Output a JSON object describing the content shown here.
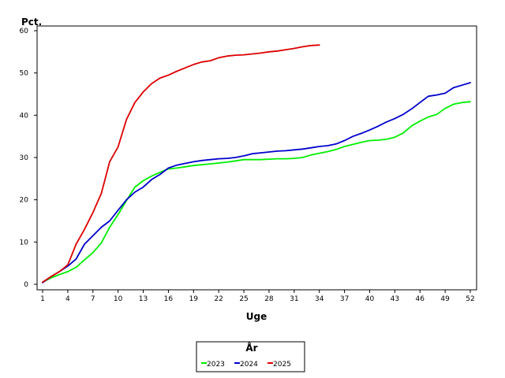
{
  "chart_data": {
    "type": "line",
    "title": "",
    "xlabel": "Uge",
    "ylabel": "Pct.",
    "xlim": [
      1,
      52
    ],
    "ylim": [
      0,
      60
    ],
    "grid": false,
    "x_ticks": [
      1,
      4,
      7,
      10,
      13,
      16,
      19,
      22,
      25,
      28,
      31,
      34,
      37,
      40,
      43,
      46,
      49,
      52
    ],
    "y_ticks": [
      0,
      10,
      20,
      30,
      40,
      50,
      60
    ],
    "legend": {
      "title": "År",
      "placement": "bottom-center"
    },
    "series": [
      {
        "name": "2023",
        "color": "#00ee00",
        "x": [
          1,
          2,
          3,
          4,
          5,
          6,
          7,
          8,
          9,
          10,
          11,
          12,
          13,
          14,
          15,
          16,
          17,
          18,
          19,
          20,
          21,
          22,
          23,
          24,
          25,
          26,
          27,
          28,
          29,
          30,
          31,
          32,
          33,
          34,
          35,
          36,
          37,
          38,
          39,
          40,
          41,
          42,
          43,
          44,
          45,
          46,
          47,
          48,
          49,
          50,
          51,
          52
        ],
        "values": [
          0.5,
          1.5,
          2.3,
          3,
          4,
          5.8,
          7.5,
          9.8,
          13.5,
          16.5,
          19.8,
          23,
          24.5,
          25.6,
          26.5,
          27.3,
          27.5,
          27.8,
          28.1,
          28.3,
          28.5,
          28.7,
          28.9,
          29.2,
          29.5,
          29.5,
          29.5,
          29.6,
          29.7,
          29.7,
          29.8,
          30,
          30.6,
          31,
          31.4,
          31.9,
          32.6,
          33.1,
          33.6,
          34,
          34.1,
          34.3,
          34.8,
          35.8,
          37.5,
          38.6,
          39.6,
          40.2,
          41.6,
          42.6,
          43,
          43.2
        ]
      },
      {
        "name": "2024",
        "color": "#0000cc",
        "x": [
          1,
          2,
          3,
          4,
          5,
          6,
          7,
          8,
          9,
          10,
          11,
          12,
          13,
          14,
          15,
          16,
          17,
          18,
          19,
          20,
          21,
          22,
          23,
          24,
          25,
          26,
          27,
          28,
          29,
          30,
          31,
          32,
          33,
          34,
          35,
          36,
          37,
          38,
          39,
          40,
          41,
          42,
          43,
          44,
          45,
          46,
          47,
          48,
          49,
          50,
          51,
          52
        ],
        "values": [
          0.4,
          1.8,
          3,
          4.3,
          6,
          9.5,
          11.5,
          13.5,
          15,
          17.5,
          20,
          21.8,
          23,
          24.8,
          26,
          27.5,
          28.2,
          28.6,
          29,
          29.3,
          29.5,
          29.7,
          29.8,
          30,
          30.4,
          30.9,
          31.1,
          31.3,
          31.5,
          31.6,
          31.8,
          32,
          32.3,
          32.6,
          32.8,
          33.2,
          34,
          35,
          35.7,
          36.5,
          37.4,
          38.4,
          39.2,
          40.2,
          41.5,
          43,
          44.5,
          44.8,
          45.2,
          46.5,
          47.1,
          47.7
        ]
      },
      {
        "name": "2025",
        "color": "#dd0000",
        "x": [
          1,
          2,
          3,
          4,
          5,
          6,
          7,
          8,
          9,
          10,
          11,
          12,
          13,
          14,
          15,
          16,
          17,
          18,
          19,
          20,
          21,
          22,
          23,
          24,
          25,
          26,
          27,
          28,
          29,
          30,
          31,
          32,
          33,
          34
        ],
        "values": [
          0.5,
          1.8,
          3,
          4.6,
          9.5,
          13,
          17,
          21.5,
          29,
          32.5,
          39,
          43,
          45.5,
          47.5,
          48.8,
          49.5,
          50.4,
          51.2,
          52,
          52.6,
          52.9,
          53.6,
          54,
          54.2,
          54.3,
          54.5,
          54.7,
          55,
          55.2,
          55.5,
          55.8,
          56.2,
          56.5,
          56.6
        ]
      }
    ]
  }
}
